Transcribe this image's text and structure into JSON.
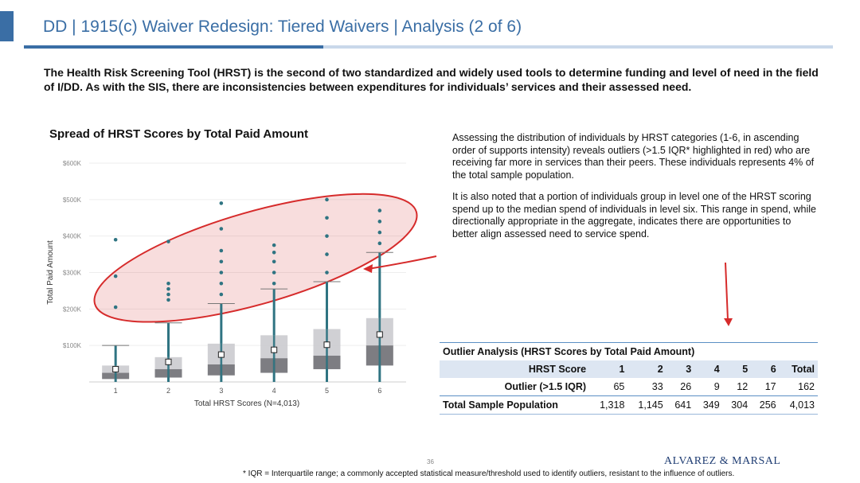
{
  "header": {
    "title": "DD | 1915(c) Waiver Redesign: Tiered Waivers | Analysis (2 of 6)"
  },
  "intro_text": "The Health Risk Screening Tool (HRST) is the second of two standardized and widely used tools to determine funding and level of need in the field of I/DD. As with the SIS, there are inconsistencies between expenditures for individuals’ services and their assessed need.",
  "chart": {
    "title": "Spread of HRST Scores by Total Paid Amount"
  },
  "chart_data": {
    "type": "box",
    "title": "Spread of HRST Scores by Total Paid Amount",
    "xlabel": "Total HRST Scores (N=4,013)",
    "ylabel": "Total Paid Amount",
    "categories": [
      "1",
      "2",
      "3",
      "4",
      "5",
      "6"
    ],
    "y_ticks": [
      "$100K",
      "$200K",
      "$300K",
      "$400K",
      "$500K",
      "$600K"
    ],
    "ylim": [
      0,
      600000
    ],
    "boxes": [
      {
        "category": "1",
        "q1": 8000,
        "median": 25000,
        "q3": 45000,
        "mean": 35000,
        "whisker_high": 100000,
        "outliers": [
          205000,
          290000,
          390000
        ]
      },
      {
        "category": "2",
        "q1": 12000,
        "median": 35000,
        "q3": 68000,
        "mean": 55000,
        "whisker_high": 162000,
        "outliers": [
          225000,
          240000,
          255000,
          270000,
          385000
        ]
      },
      {
        "category": "3",
        "q1": 18000,
        "median": 48000,
        "q3": 105000,
        "mean": 75000,
        "whisker_high": 215000,
        "outliers": [
          240000,
          270000,
          300000,
          330000,
          360000,
          420000,
          490000
        ]
      },
      {
        "category": "4",
        "q1": 25000,
        "median": 65000,
        "q3": 128000,
        "mean": 88000,
        "whisker_high": 255000,
        "outliers": [
          270000,
          300000,
          330000,
          355000,
          375000
        ]
      },
      {
        "category": "5",
        "q1": 35000,
        "median": 72000,
        "q3": 145000,
        "mean": 102000,
        "whisker_high": 275000,
        "outliers": [
          300000,
          350000,
          400000,
          450000,
          500000
        ]
      },
      {
        "category": "6",
        "q1": 45000,
        "median": 100000,
        "q3": 175000,
        "mean": 130000,
        "whisker_high": 355000,
        "outliers": [
          380000,
          410000,
          440000,
          470000
        ]
      }
    ],
    "colors": {
      "box_upper": "#c8c8cc",
      "box_lower": "#6f6f74",
      "points": "#2f7482",
      "highlight": "#d62b2b"
    }
  },
  "commentary": {
    "paragraph1": "Assessing the distribution of individuals by HRST categories (1-6, in ascending order of supports intensity) reveals outliers (>1.5 IQR* highlighted in red) who are receiving far more in services than their peers. These individuals represents 4% of the total sample population.",
    "paragraph2": "It is also noted that a portion of individuals group in level one of the HRST scoring spend up to the median spend of individuals in level six. This range in spend, while directionally appropriate in the aggregate, indicates there are opportunities to better align assessed need to service spend."
  },
  "table": {
    "title": "Outlier Analysis (HRST Scores by Total Paid Amount)",
    "header": [
      "HRST Score",
      "1",
      "2",
      "3",
      "4",
      "5",
      "6",
      "Total"
    ],
    "rows": [
      [
        "Outlier (>1.5 IQR)",
        "65",
        "33",
        "26",
        "9",
        "12",
        "17",
        "162"
      ],
      [
        "Total Sample Population",
        "1,318",
        "1,145",
        "641",
        "349",
        "304",
        "256",
        "4,013"
      ]
    ]
  },
  "footer": {
    "page_number": "36",
    "logo": "ALVAREZ & MARSAL",
    "footnote": "* IQR = Interquartile range; a commonly accepted statistical measure/threshold used to identify outliers, resistant to the influence of outliers."
  }
}
